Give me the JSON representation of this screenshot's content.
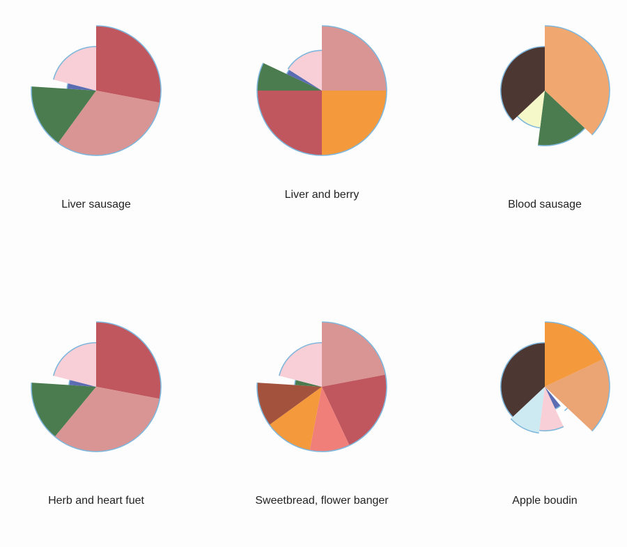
{
  "colors": {
    "outline": "#7fb7dc",
    "background": "#fdfdfd"
  },
  "chart_data": [
    {
      "type": "pie",
      "title": "Liver sausage",
      "slices": [
        {
          "value": 28,
          "radius": 1.0,
          "color": "#c0575f"
        },
        {
          "value": 32,
          "radius": 1.0,
          "color": "#d99593"
        },
        {
          "value": 16,
          "radius": 1.0,
          "color": "#4a7c4f"
        },
        {
          "value": 3,
          "radius": 0.45,
          "color": "#5b6cb3"
        },
        {
          "value": 21,
          "radius": 0.68,
          "color": "#f8cfd6"
        }
      ]
    },
    {
      "type": "pie",
      "title": "Liver and berry",
      "slices": [
        {
          "value": 25,
          "radius": 1.0,
          "color": "#d99593"
        },
        {
          "value": 25,
          "radius": 1.0,
          "color": "#f49a3c"
        },
        {
          "value": 25,
          "radius": 1.0,
          "color": "#c0575f"
        },
        {
          "value": 7,
          "radius": 1.0,
          "color": "#4a7c4f"
        },
        {
          "value": 2,
          "radius": 0.6,
          "color": "#5b6cb3"
        },
        {
          "value": 16,
          "radius": 0.62,
          "color": "#f8cfd6"
        }
      ]
    },
    {
      "type": "pie",
      "title": "Blood sausage",
      "slices": [
        {
          "value": 37,
          "radius": 1.0,
          "color": "#f1a870"
        },
        {
          "value": 15,
          "radius": 0.85,
          "color": "#4a7c4f"
        },
        {
          "value": 11,
          "radius": 0.58,
          "color": "#f5f8c8"
        },
        {
          "value": 37,
          "radius": 0.68,
          "color": "#4d3733"
        }
      ]
    },
    {
      "type": "pie",
      "title": "Herb and heart fuet",
      "slices": [
        {
          "value": 28,
          "radius": 1.0,
          "color": "#c0575f"
        },
        {
          "value": 33,
          "radius": 1.0,
          "color": "#d99593"
        },
        {
          "value": 15,
          "radius": 1.0,
          "color": "#4a7c4f"
        },
        {
          "value": 3,
          "radius": 0.42,
          "color": "#5b6cb3"
        },
        {
          "value": 21,
          "radius": 0.68,
          "color": "#f8cfd6"
        }
      ]
    },
    {
      "type": "pie",
      "title": "Sweetbread, flower banger",
      "slices": [
        {
          "value": 22,
          "radius": 1.0,
          "color": "#d99593"
        },
        {
          "value": 21,
          "radius": 1.0,
          "color": "#c0575f"
        },
        {
          "value": 10,
          "radius": 1.0,
          "color": "#f07f79"
        },
        {
          "value": 12,
          "radius": 1.0,
          "color": "#f49a3c"
        },
        {
          "value": 11,
          "radius": 1.0,
          "color": "#a3523e"
        },
        {
          "value": 3,
          "radius": 0.42,
          "color": "#4a7c4f"
        },
        {
          "value": 21,
          "radius": 0.68,
          "color": "#f8cfd6"
        }
      ]
    },
    {
      "type": "pie",
      "title": "Apple boudin",
      "slices": [
        {
          "value": 18,
          "radius": 1.0,
          "color": "#f49a3c"
        },
        {
          "value": 19,
          "radius": 1.0,
          "color": "#eba474"
        },
        {
          "value": 2,
          "radius": 0.48,
          "color": "#ffffff"
        },
        {
          "value": 4,
          "radius": 0.38,
          "color": "#5b6cb3"
        },
        {
          "value": 9,
          "radius": 0.68,
          "color": "#f8cfd6"
        },
        {
          "value": 11,
          "radius": 0.72,
          "color": "#cdeaf2"
        },
        {
          "value": 37,
          "radius": 0.68,
          "color": "#4d3733"
        }
      ]
    }
  ]
}
